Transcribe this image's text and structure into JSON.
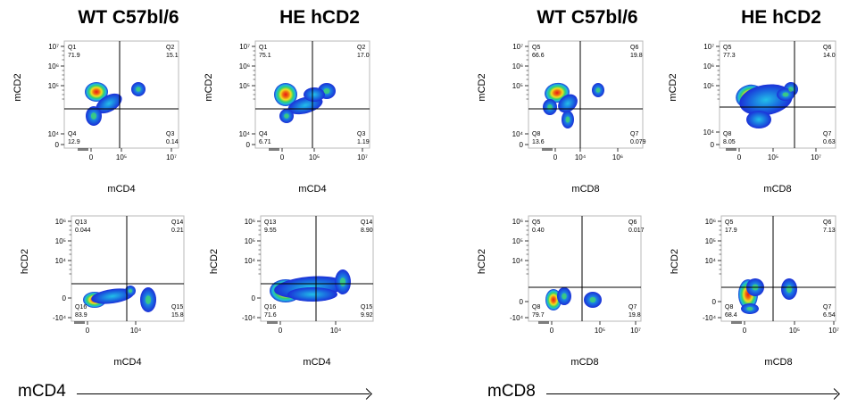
{
  "titles": [
    "WT C57bl/6",
    "HE hCD2",
    "WT C57bl/6",
    "HE hCD2"
  ],
  "bottom_labels": {
    "left": "mCD4",
    "right": "mCD8"
  },
  "panels": [
    {
      "id": "p1",
      "ylabel": "mCD2",
      "xlabel": "mCD4",
      "yticks": [
        "10⁷",
        "10⁶",
        "10⁵",
        "10⁴",
        "0"
      ],
      "xticks": [
        "0",
        "10⁵",
        "10⁷"
      ],
      "quadrants": [
        {
          "name": "Q1",
          "value": "71.9"
        },
        {
          "name": "Q2",
          "value": "15.1"
        },
        {
          "name": "Q3",
          "value": "0.14"
        },
        {
          "name": "Q4",
          "value": "12.9"
        }
      ]
    },
    {
      "id": "p2",
      "ylabel": "mCD2",
      "xlabel": "mCD4",
      "yticks": [
        "10⁷",
        "10⁶",
        "10⁵",
        "10⁴",
        "0"
      ],
      "xticks": [
        "0",
        "10⁵",
        "10⁷"
      ],
      "quadrants": [
        {
          "name": "Q1",
          "value": "75.1"
        },
        {
          "name": "Q2",
          "value": "17.0"
        },
        {
          "name": "Q3",
          "value": "1.19"
        },
        {
          "name": "Q4",
          "value": "6.71"
        }
      ]
    },
    {
      "id": "p3",
      "ylabel": "mCD2",
      "xlabel": "mCD8",
      "yticks": [
        "10⁷",
        "10⁶",
        "10⁵",
        "10⁴",
        "0"
      ],
      "xticks": [
        "0",
        "10⁴",
        "10⁶"
      ],
      "quadrants": [
        {
          "name": "Q5",
          "value": "66.6"
        },
        {
          "name": "Q6",
          "value": "19.8"
        },
        {
          "name": "Q7",
          "value": "0.079"
        },
        {
          "name": "Q8",
          "value": "13.6"
        }
      ]
    },
    {
      "id": "p4",
      "ylabel": "mCD2",
      "xlabel": "mCD8",
      "yticks": [
        "10⁷",
        "10⁶",
        "10⁵",
        "10⁴",
        "0"
      ],
      "xticks": [
        "0",
        "10⁵",
        "10⁷"
      ],
      "quadrants": [
        {
          "name": "Q5",
          "value": "77.3"
        },
        {
          "name": "Q6",
          "value": "14.0"
        },
        {
          "name": "Q7",
          "value": "0.63"
        },
        {
          "name": "Q8",
          "value": "8.05"
        }
      ]
    },
    {
      "id": "p5",
      "ylabel": "hCD2",
      "xlabel": "mCD4",
      "yticks": [
        "10⁶",
        "10⁵",
        "10⁴",
        "0",
        "-10⁴"
      ],
      "xticks": [
        "0",
        "10⁴"
      ],
      "quadrants": [
        {
          "name": "Q13",
          "value": "0.044"
        },
        {
          "name": "Q14",
          "value": "0.21"
        },
        {
          "name": "Q15",
          "value": "15.8"
        },
        {
          "name": "Q16",
          "value": "83.9"
        }
      ]
    },
    {
      "id": "p6",
      "ylabel": "hCD2",
      "xlabel": "mCD4",
      "yticks": [
        "10⁶",
        "10⁵",
        "10⁴",
        "0",
        "-10⁴"
      ],
      "xticks": [
        "0",
        "10⁴"
      ],
      "quadrants": [
        {
          "name": "Q13",
          "value": "9.55"
        },
        {
          "name": "Q14",
          "value": "8.90"
        },
        {
          "name": "Q15",
          "value": "9.92"
        },
        {
          "name": "Q16",
          "value": "71.6"
        }
      ]
    },
    {
      "id": "p7",
      "ylabel": "hCD2",
      "xlabel": "mCD8",
      "yticks": [
        "10⁶",
        "10⁵",
        "10⁴",
        "0",
        "-10⁴"
      ],
      "xticks": [
        "0",
        "10⁵",
        "10⁷"
      ],
      "quadrants": [
        {
          "name": "Q5",
          "value": "0.40"
        },
        {
          "name": "Q6",
          "value": "0.017"
        },
        {
          "name": "Q7",
          "value": "19.8"
        },
        {
          "name": "Q8",
          "value": "79.7"
        }
      ]
    },
    {
      "id": "p8",
      "ylabel": "hCD2",
      "xlabel": "mCD8",
      "yticks": [
        "10⁶",
        "10⁵",
        "10⁴",
        "0",
        "-10⁴"
      ],
      "xticks": [
        "0",
        "10⁵",
        "10⁷"
      ],
      "quadrants": [
        {
          "name": "Q5",
          "value": "17.9"
        },
        {
          "name": "Q6",
          "value": "7.13"
        },
        {
          "name": "Q7",
          "value": "6.54"
        },
        {
          "name": "Q8",
          "value": "68.4"
        }
      ]
    }
  ]
}
